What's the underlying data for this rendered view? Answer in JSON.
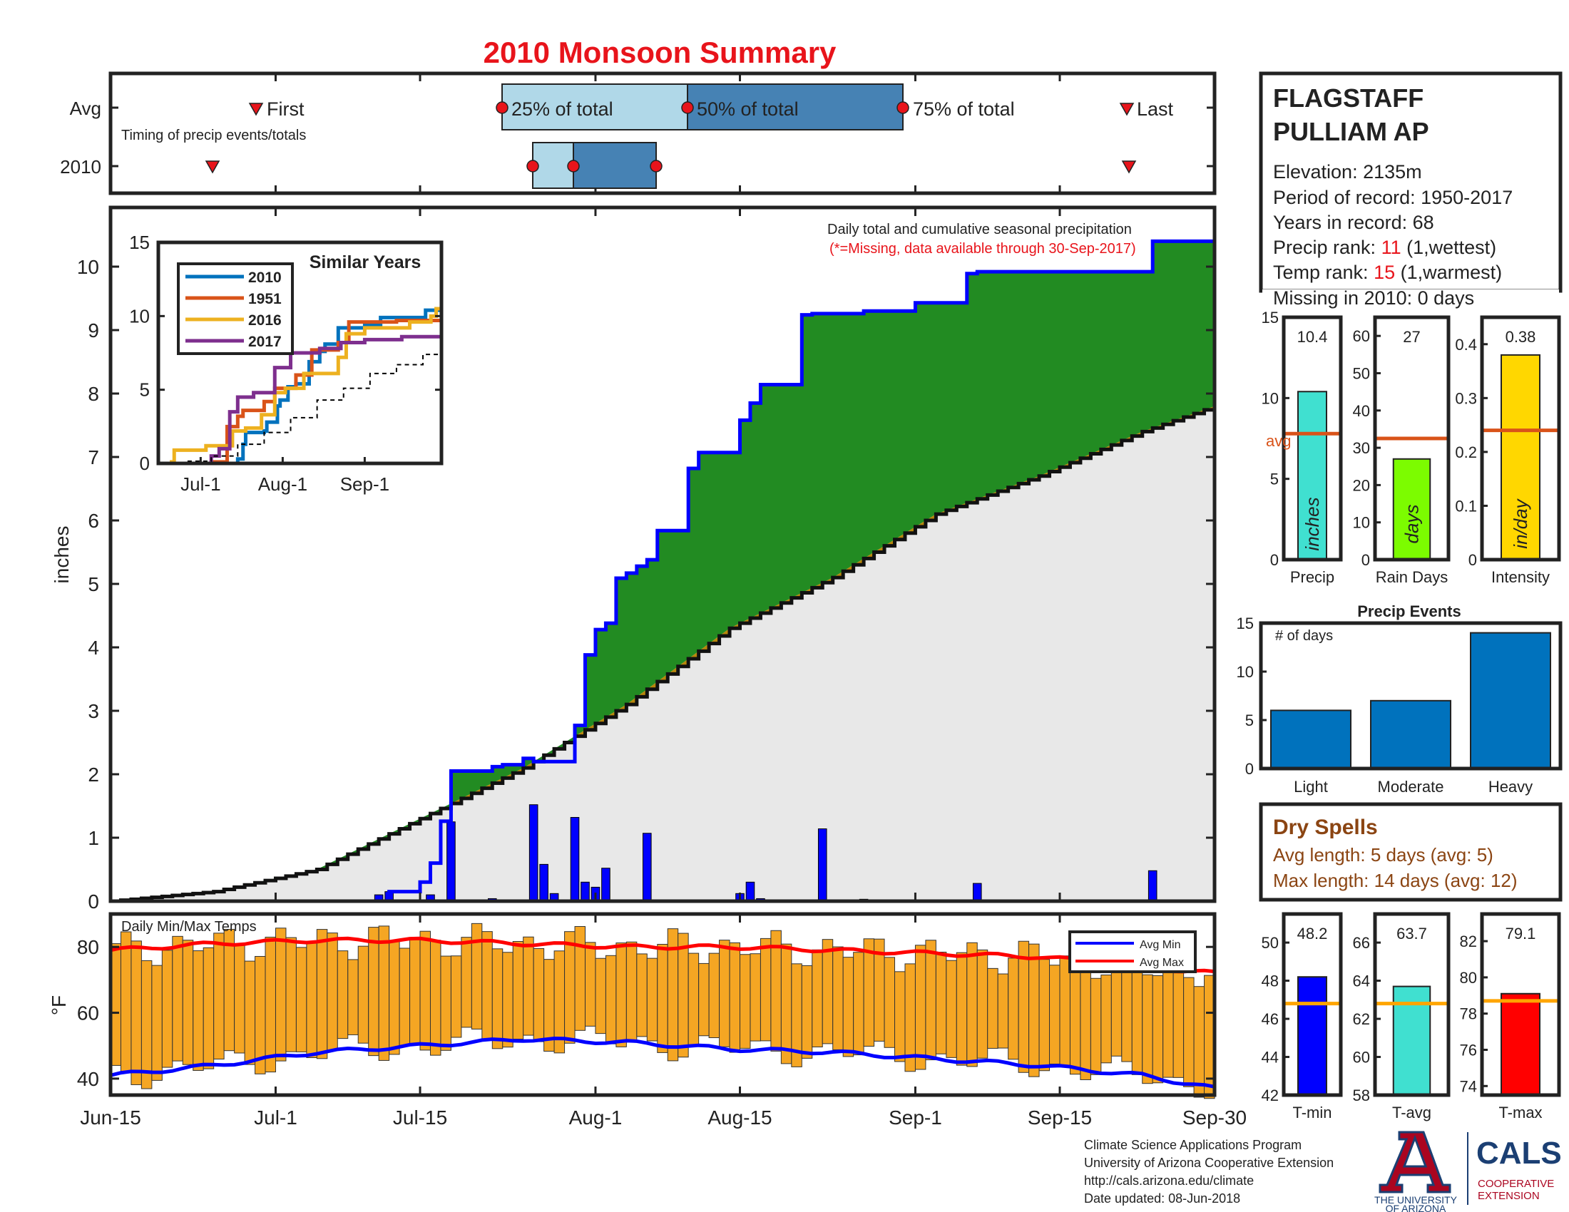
{
  "title": "2010 Monsoon Summary",
  "colors": {
    "title": "#e8141b",
    "red": "#e8141b",
    "accum_above": "#228b22",
    "accum_below": "#b8860b",
    "avg_cum_fill": "#e8e8e8",
    "daily_bar": "#0000ff",
    "temp_bar": "#f5a623",
    "avg_min": "#0000ff",
    "avg_max": "#ff0000",
    "timing_q1": "#b0d8e8",
    "timing_q2": "#4682b4",
    "ref_line": "#d95319",
    "tbar_ref": "#ffa500",
    "dry_spell_text": "#8b4513",
    "navy": "#1b3f73"
  },
  "timing": {
    "avg_label": "Avg",
    "year_label": "2010",
    "subtitle": "Timing of precip events/totals",
    "first_label": "First",
    "last_label": "Last",
    "q25_label": "25% of total",
    "q50_label": "50% of total",
    "q75_label": "75% of total"
  },
  "station": {
    "name_line1": "FLAGSTAFF",
    "name_line2": "PULLIAM AP",
    "elevation": "Elevation: 2135m",
    "period": "Period of record: 1950-2017",
    "years": "Years in record: 68",
    "precip_rank_label": "Precip rank:",
    "precip_rank_value": "11",
    "precip_rank_note": "(1,wettest)",
    "temp_rank_label": "Temp rank:",
    "temp_rank_value": "15",
    "temp_rank_note": "(1,warmest)",
    "missing": "Missing in 2010: 0 days"
  },
  "main_chart": {
    "ylabel": "inches",
    "note_line1": "Daily total and cumulative seasonal precipitation",
    "note_line2": "(*=Missing, data available through 30-Sep-2017)"
  },
  "similar_years": {
    "title": "Similar Years",
    "legend": [
      "2010",
      "1951",
      "2016",
      "2017"
    ]
  },
  "temps": {
    "title": "Daily Min/Max Temps",
    "ylabel": "°F",
    "legend_min": "Avg Min",
    "legend_max": "Avg Max"
  },
  "footer": {
    "line1": "Climate Science Applications Program",
    "line2": "University of Arizona Cooperative Extension",
    "line3": "http://cals.arizona.edu/climate",
    "line4": " Date updated: 08-Jun-2018",
    "ua_line1": "THE UNIVERSITY",
    "ua_line2": "OF ARIZONA",
    "cals": "CALS",
    "coop1": "COOPERATIVE",
    "coop2": "EXTENSION"
  },
  "dry_spells": {
    "title": "Dry Spells",
    "avg": "Avg length: 5 days (avg: 5)",
    "max": "Max length: 14 days (avg: 12)"
  },
  "chart_data": [
    {
      "id": "main",
      "type": "area",
      "title": "",
      "ylabel": "inches",
      "ylim": [
        0,
        10.5
      ],
      "y_ticks": [
        "0",
        "1",
        "2",
        "3",
        "4",
        "5",
        "6",
        "7",
        "8",
        "9",
        "10"
      ],
      "x_ticks": [
        "Jun-15",
        "Jul-1",
        "Jul-15",
        "Aug-1",
        "Aug-15",
        "Sep-1",
        "Sep-15",
        "Sep-30"
      ],
      "x_tick_days": [
        0,
        16,
        30,
        47,
        61,
        78,
        92,
        107
      ],
      "cumulative_2010": {
        "days": [
          0,
          26,
          27,
          30,
          31,
          32,
          33,
          37,
          38,
          40,
          41,
          45,
          46,
          47,
          48,
          49,
          50,
          51,
          52,
          53,
          56,
          57,
          61,
          62,
          63,
          67,
          68,
          73,
          78,
          83,
          84,
          101,
          107
        ],
        "values": [
          0,
          0,
          0.15,
          0.3,
          0.6,
          1.26,
          2.05,
          2.12,
          2.15,
          2.25,
          2.2,
          2.77,
          3.88,
          4.28,
          4.38,
          5.09,
          5.17,
          5.28,
          5.38,
          5.84,
          6.82,
          7.07,
          7.58,
          7.85,
          8.14,
          9.24,
          9.26,
          9.3,
          9.43,
          9.89,
          9.92,
          10.4,
          10.4
        ]
      },
      "cumulative_avg": {
        "days": [
          0,
          10,
          20,
          30,
          40,
          50,
          60,
          70,
          80,
          90,
          100,
          107
        ],
        "values": [
          0,
          0.15,
          0.5,
          1.3,
          2.1,
          3.1,
          4.3,
          5.1,
          6.1,
          6.7,
          7.4,
          7.8
        ]
      },
      "daily_precip": {
        "days": [
          26,
          27,
          31,
          33,
          37,
          41,
          42,
          43,
          45,
          46,
          47,
          48,
          52,
          61,
          62,
          63,
          69,
          73,
          84,
          101
        ],
        "values": [
          0.1,
          0.15,
          0.1,
          1.25,
          0.04,
          1.52,
          0.58,
          0.12,
          1.32,
          0.3,
          0.22,
          0.52,
          1.07,
          0.12,
          0.3,
          0.04,
          1.14,
          0.03,
          0.28,
          0.48
        ]
      }
    },
    {
      "id": "similar_years",
      "type": "line",
      "title": "Similar Years",
      "ylim": [
        0,
        15
      ],
      "y_ticks": [
        "0",
        "5",
        "10",
        "15"
      ],
      "x_ticks": [
        "Jul-1",
        "Aug-1",
        "Sep-1"
      ],
      "x_tick_days": [
        16,
        47,
        78
      ],
      "series": [
        {
          "name": "2010",
          "color": "#0072bd",
          "days": [
            0,
            26,
            30,
            32,
            33,
            40,
            41,
            45,
            46,
            49,
            52,
            57,
            61,
            63,
            68,
            78,
            84,
            101,
            107
          ],
          "values": [
            0,
            0,
            0.3,
            1.3,
            2.1,
            2.2,
            2.8,
            3.9,
            4.3,
            5.2,
            5.4,
            6.9,
            7.6,
            8.1,
            9.2,
            9.4,
            9.9,
            10.4,
            10.4
          ]
        },
        {
          "name": "1951",
          "color": "#d95319",
          "days": [
            0,
            20,
            26,
            30,
            32,
            40,
            44,
            52,
            58,
            68,
            72,
            78,
            90,
            107
          ],
          "values": [
            0,
            0.1,
            2.5,
            3.2,
            3.6,
            4.2,
            5.1,
            6.0,
            7.7,
            8.2,
            9.6,
            9.6,
            9.7,
            10.4
          ]
        },
        {
          "name": "2016",
          "color": "#edb120",
          "days": [
            0,
            5,
            6,
            18,
            28,
            33,
            39,
            44,
            48,
            55,
            68,
            71,
            78,
            95,
            103,
            105,
            107
          ],
          "values": [
            0,
            0.1,
            0.9,
            1.2,
            2.2,
            2.4,
            3.3,
            4.8,
            5.1,
            6.1,
            7.2,
            8.8,
            9.2,
            9.6,
            10.0,
            10.5,
            11.2
          ]
        },
        {
          "name": "2017",
          "color": "#7e2f8e",
          "days": [
            0,
            16,
            20,
            23,
            27,
            30,
            36,
            44,
            50,
            61,
            69,
            78,
            92,
            107
          ],
          "values": [
            0,
            0,
            0.5,
            1.0,
            3.5,
            4.5,
            4.8,
            6.5,
            7.5,
            7.8,
            8.2,
            8.4,
            8.6,
            8.8
          ]
        },
        {
          "name": "",
          "color": "#000000",
          "dashed": true,
          "days": [
            0,
            10,
            20,
            30,
            40,
            50,
            60,
            70,
            80,
            90,
            100,
            107
          ],
          "values": [
            0,
            0.15,
            0.5,
            1.3,
            2.1,
            3.1,
            4.3,
            5.1,
            6.1,
            6.7,
            7.4,
            7.8
          ]
        }
      ]
    },
    {
      "id": "temps",
      "type": "bar",
      "title": "Daily Min/Max Temps",
      "ylabel": "°F",
      "ylim": [
        35,
        90
      ],
      "y_ticks": [
        "40",
        "60",
        "80"
      ],
      "x_ticks": [
        "Jun-15",
        "Jul-1",
        "Jul-15",
        "Aug-1",
        "Aug-15",
        "Sep-1",
        "Sep-15",
        "Sep-30"
      ],
      "x_tick_days": [
        0,
        16,
        30,
        47,
        61,
        78,
        92,
        107
      ],
      "avg_min": {
        "days": [
          0,
          10,
          20,
          30,
          40,
          50,
          60,
          70,
          80,
          90,
          100,
          107
        ],
        "values": [
          41,
          44,
          48,
          50,
          52,
          51,
          49,
          48,
          46,
          44,
          41,
          37
        ]
      },
      "avg_max": {
        "days": [
          0,
          10,
          20,
          30,
          40,
          50,
          60,
          70,
          80,
          90,
          100,
          107
        ],
        "values": [
          79,
          81,
          82,
          82,
          81,
          80,
          80,
          79,
          78,
          77,
          74,
          72
        ]
      }
    },
    {
      "id": "precip_box",
      "type": "bar",
      "categories": [
        "Precip"
      ],
      "values": [
        10.4
      ],
      "label": "10.4",
      "inside_text": "inches",
      "ref": 7.8,
      "ref_label": "avg",
      "ylim": [
        0,
        15
      ],
      "y_ticks": [
        "0",
        "5",
        "10",
        "15"
      ]
    },
    {
      "id": "raindays_box",
      "type": "bar",
      "categories": [
        "Rain Days"
      ],
      "values": [
        27
      ],
      "label": "27",
      "inside_text": "days",
      "ref": 32.5,
      "ylim": [
        0,
        65
      ],
      "y_ticks": [
        "0",
        "10",
        "20",
        "30",
        "40",
        "50",
        "60"
      ]
    },
    {
      "id": "intensity_box",
      "type": "bar",
      "categories": [
        "Intensity"
      ],
      "values": [
        0.38
      ],
      "label": "0.38",
      "inside_text": "in/day",
      "ref": 0.24,
      "ylim": [
        0,
        0.45
      ],
      "y_ticks": [
        "0",
        "0.1",
        "0.2",
        "0.3",
        "0.4"
      ]
    },
    {
      "id": "precip_events",
      "type": "bar",
      "title": "Precip Events",
      "annotation": "# of days",
      "categories": [
        "Light",
        "Moderate",
        "Heavy"
      ],
      "values": [
        6,
        7,
        14
      ],
      "ylim": [
        0,
        15
      ],
      "y_ticks": [
        "0",
        "5",
        "10",
        "15"
      ]
    },
    {
      "id": "tmin_box",
      "type": "bar",
      "categories": [
        "T-min"
      ],
      "values": [
        48.2
      ],
      "label": "48.2",
      "ref": 46.8,
      "ylim": [
        42,
        51.5
      ],
      "y_ticks": [
        "42",
        "44",
        "46",
        "48",
        "50"
      ]
    },
    {
      "id": "tavg_box",
      "type": "bar",
      "categories": [
        "T-avg"
      ],
      "values": [
        63.7
      ],
      "label": "63.7",
      "ref": 62.8,
      "ylim": [
        58,
        67.5
      ],
      "y_ticks": [
        "58",
        "60",
        "62",
        "64",
        "66"
      ]
    },
    {
      "id": "tmax_box",
      "type": "bar",
      "categories": [
        "T-max"
      ],
      "values": [
        79.1
      ],
      "label": "79.1",
      "ref": 78.7,
      "ylim": [
        73.5,
        83.5
      ],
      "y_ticks": [
        "74",
        "76",
        "78",
        "80",
        "82"
      ]
    }
  ]
}
